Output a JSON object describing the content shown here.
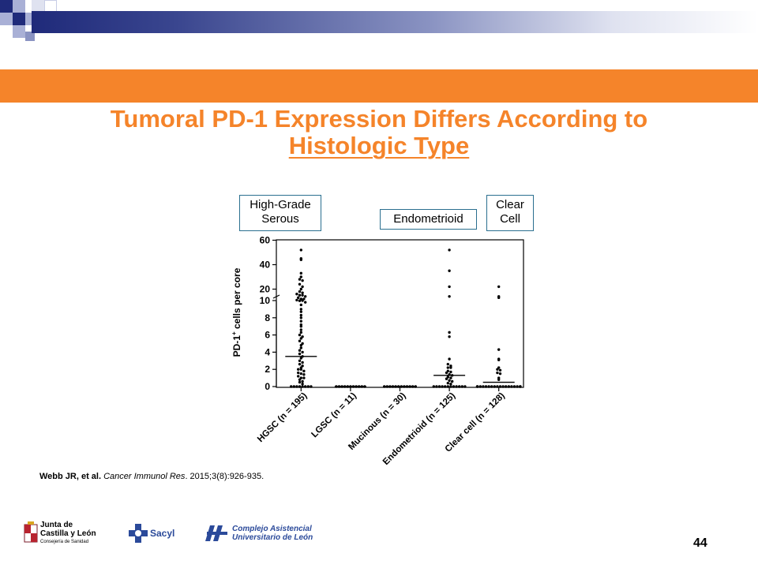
{
  "slide": {
    "title_line1": "Tumoral PD-1 Expression Differs According to",
    "title_line2": "Histologic Type",
    "page_number": "44",
    "colors": {
      "accent": "#f5842a",
      "navy": "#1f2a7a",
      "callout_border": "#2a6f8f"
    }
  },
  "callouts": {
    "hgsc": "High-Grade Serous",
    "endometrioid": "Endometrioid",
    "clear_cell": "Clear Cell"
  },
  "citation": {
    "authors": "Webb JR, et al.",
    "journal": "Cancer Immunol Res",
    "details": ". 2015;3(8):926-935."
  },
  "logos": {
    "junta_line1": "Junta de",
    "junta_line2": "Castilla y León",
    "junta_line3": "Consejería de Sanidad",
    "sacyl": "Sacyl",
    "complejo_line1": "Complejo Asistencial",
    "complejo_line2": "Universitario de León",
    "complejo_icon": "hospital-logo-icon",
    "junta_icon": "coat-of-arms-icon",
    "sacyl_icon": "sacyl-cross-icon"
  },
  "chart_data": {
    "type": "scatter",
    "ylabel_main": "PD-1",
    "ylabel_sup": "+",
    "ylabel_rest": " cells per core",
    "y_ticks_lower": [
      "0",
      "2",
      "4",
      "6",
      "8",
      "10"
    ],
    "y_ticks_upper": [
      "20",
      "40",
      "60"
    ],
    "y_axis_break": true,
    "categories": [
      {
        "label": "HGSC (n = 195)",
        "median": 3.5
      },
      {
        "label": "LGSC (n = 11)",
        "median": 0
      },
      {
        "label": "Mucinous (n = 30)",
        "median": 0
      },
      {
        "label": "Endometrioid (n = 125)",
        "median": 1.3
      },
      {
        "label": "Clear cell (n = 128)",
        "median": 0.5
      }
    ],
    "series": [
      {
        "values": [
          52,
          45,
          44,
          33,
          30,
          28,
          27,
          24,
          22,
          20,
          18,
          17,
          16,
          15,
          15,
          14,
          13,
          12,
          12,
          11,
          10.5,
          10,
          9.8,
          9.5,
          9,
          8.7,
          8.3,
          8,
          7.6,
          7.2,
          7,
          6.6,
          6.3,
          6,
          5.8,
          5.6,
          5.3,
          5,
          4.8,
          4.5,
          4.2,
          4,
          3.8,
          3.5,
          3.3,
          3,
          2.8,
          2.6,
          2.4,
          2.2,
          2,
          2,
          1.8,
          1.6,
          1.5,
          1.4,
          1.2,
          1,
          1,
          0.8,
          0.6,
          0.5,
          0.3,
          0,
          0,
          0,
          0,
          0,
          0,
          0,
          0
        ]
      },
      {
        "values": [
          0,
          0,
          0,
          0,
          0,
          0,
          0,
          0,
          0,
          0,
          0
        ]
      },
      {
        "values": [
          0,
          0,
          0,
          0,
          0,
          0,
          0,
          0,
          0,
          0,
          0,
          0
        ]
      },
      {
        "values": [
          52,
          35,
          22,
          14,
          6.3,
          5.8,
          3.2,
          2.6,
          2.4,
          2.2,
          2.2,
          1.8,
          1.7,
          1.6,
          1.4,
          1.3,
          1.1,
          1,
          0.9,
          0.7,
          0.6,
          0.4,
          0.3,
          0,
          0,
          0,
          0,
          0,
          0,
          0,
          0,
          0,
          0,
          0,
          0
        ]
      },
      {
        "values": [
          22,
          14,
          13,
          4.3,
          3.2,
          3.1,
          2.2,
          2,
          1.9,
          1.6,
          1.5,
          1,
          0.8,
          0,
          0,
          0,
          0,
          0,
          0,
          0,
          0,
          0,
          0,
          0,
          0,
          0,
          0,
          0,
          0,
          0,
          0
        ]
      }
    ]
  }
}
